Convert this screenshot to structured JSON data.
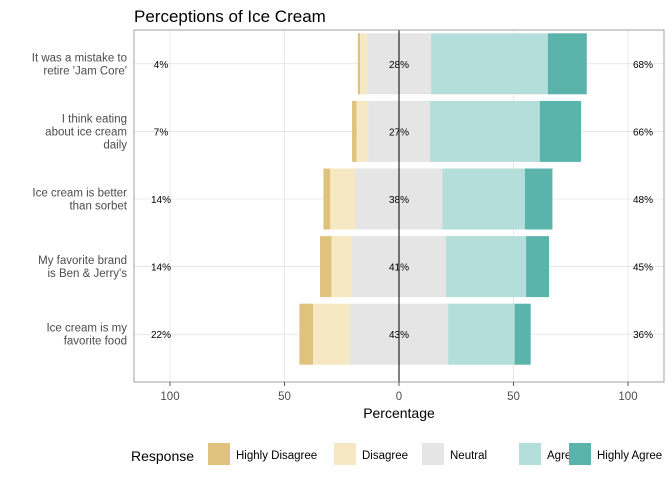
{
  "chart_data": {
    "type": "bar",
    "subtype": "diverging-stacked-horizontal",
    "title": "Perceptions of Ice Cream",
    "xlabel": "Percentage",
    "ylabel": "",
    "xlim": [
      -100,
      100
    ],
    "x_ticks": [
      -100,
      -50,
      0,
      50,
      100
    ],
    "x_tick_labels": [
      "100",
      "50",
      "0",
      "50",
      "100"
    ],
    "legend_title": "Response",
    "legend_position": "bottom",
    "grid": true,
    "series": [
      {
        "name": "Highly Disagree",
        "color": "#dfc27d"
      },
      {
        "name": "Disagree",
        "color": "#f6e8c3"
      },
      {
        "name": "Neutral",
        "color": "#e5e5e5"
      },
      {
        "name": "Agree",
        "color": "#b4deda"
      },
      {
        "name": "Highly Agree",
        "color": "#5ab4ac"
      }
    ],
    "categories": [
      {
        "label": "It was a mistake to\nretire 'Jam Core'",
        "values": [
          1,
          3,
          28,
          51,
          17
        ],
        "low_label": "4%",
        "neutral_label": "28%",
        "high_label": "68%"
      },
      {
        "label": "I think eating\nabout ice cream\ndaily",
        "values": [
          2,
          5,
          27,
          48,
          18
        ],
        "low_label": "7%",
        "neutral_label": "27%",
        "high_label": "66%"
      },
      {
        "label": "Ice cream is better\nthan sorbet",
        "values": [
          3,
          11,
          38,
          36,
          12
        ],
        "low_label": "14%",
        "neutral_label": "38%",
        "high_label": "48%"
      },
      {
        "label": "My favorite brand\nis Ben & Jerry's",
        "values": [
          5,
          9,
          41,
          35,
          10
        ],
        "low_label": "14%",
        "neutral_label": "41%",
        "high_label": "45%"
      },
      {
        "label": "Ice cream is my\nfavorite food",
        "values": [
          6,
          16,
          43,
          29,
          7
        ],
        "low_label": "22%",
        "neutral_label": "43%",
        "high_label": "36%"
      }
    ]
  }
}
